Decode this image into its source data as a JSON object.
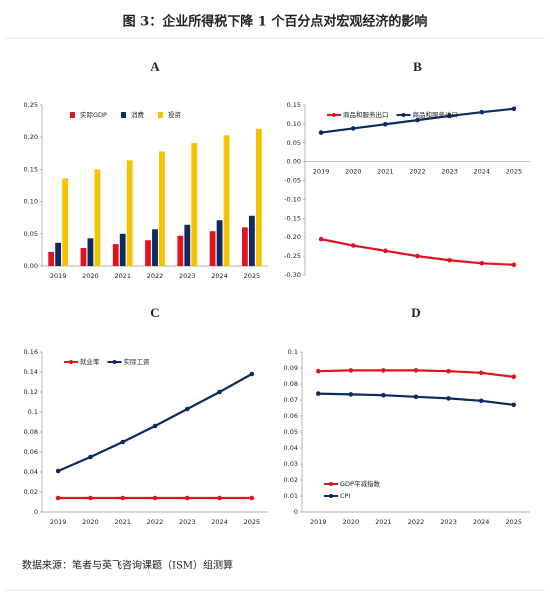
{
  "title": "图 3：企业所得税下降 1 个百分点对宏观经济的影响",
  "source": "数据来源：笔者与英飞咨询课题（ISM）组测算",
  "chart_data": [
    {
      "type": "bar",
      "title": "A",
      "categories": [
        "2019",
        "2020",
        "2021",
        "2022",
        "2023",
        "2024",
        "2025"
      ],
      "series": [
        {
          "name": "实际GDP",
          "color": "#e0141e",
          "values": [
            0.022,
            0.028,
            0.034,
            0.04,
            0.047,
            0.054,
            0.06
          ]
        },
        {
          "name": "消费",
          "color": "#0d2b5e",
          "values": [
            0.036,
            0.043,
            0.05,
            0.057,
            0.064,
            0.071,
            0.078
          ]
        },
        {
          "name": "投资",
          "color": "#f4c400",
          "values": [
            0.136,
            0.15,
            0.164,
            0.178,
            0.191,
            0.203,
            0.213
          ]
        }
      ],
      "ylim": [
        0,
        0.25
      ],
      "yticks": [
        {
          "value": 0,
          "label": "0.00"
        },
        0.05,
        {
          "value": 0.1,
          "label": "0.10"
        },
        0.15,
        {
          "value": 0.2,
          "label": "0.20"
        },
        0.25
      ],
      "legend": "upper left"
    },
    {
      "type": "line",
      "title": "B",
      "categories": [
        "2019",
        "2020",
        "2021",
        "2022",
        "2023",
        "2024",
        "2025"
      ],
      "series": [
        {
          "name": "商品和服务出口",
          "color": "#e0141e",
          "values": [
            -0.205,
            -0.222,
            -0.236,
            -0.25,
            -0.261,
            -0.269,
            -0.273
          ]
        },
        {
          "name": "商品和服务进口",
          "color": "#0d2b5e",
          "values": [
            0.077,
            0.088,
            0.099,
            0.11,
            0.121,
            0.131,
            0.14
          ]
        }
      ],
      "ylim": [
        -0.3,
        0.15
      ],
      "yticks": [
        {
          "value": -0.3,
          "label": "-0.30"
        },
        -0.25,
        {
          "value": -0.2,
          "label": "-0.20"
        },
        -0.15,
        {
          "value": -0.1,
          "label": "-0.10"
        },
        -0.05,
        {
          "value": 0,
          "label": "0.00"
        },
        0.05,
        {
          "value": 0.1,
          "label": "0.10"
        },
        0.15
      ],
      "legend": "upper left"
    },
    {
      "type": "line",
      "title": "C",
      "categories": [
        "2019",
        "2020",
        "2021",
        "2022",
        "2023",
        "2024",
        "2025"
      ],
      "series": [
        {
          "name": "就业率",
          "color": "#e0141e",
          "values": [
            0.014,
            0.014,
            0.014,
            0.014,
            0.014,
            0.014,
            0.014
          ]
        },
        {
          "name": "实际工资",
          "color": "#0d2b5e",
          "values": [
            0.041,
            0.055,
            0.07,
            0.086,
            0.103,
            0.12,
            0.138
          ]
        }
      ],
      "ylim": [
        0,
        0.16
      ],
      "yticks": [
        0,
        0.02,
        0.04,
        0.06,
        0.08,
        0.1,
        0.12,
        0.14,
        0.16
      ],
      "legend": "upper left"
    },
    {
      "type": "line",
      "title": "D",
      "categories": [
        "2019",
        "2020",
        "2021",
        "2022",
        "2023",
        "2024",
        "2025"
      ],
      "series": [
        {
          "name": "GDP平减指数",
          "color": "#e0141e",
          "values": [
            0.088,
            0.0885,
            0.0885,
            0.0885,
            0.088,
            0.087,
            0.0845
          ]
        },
        {
          "name": "CPI",
          "color": "#0d2b5e",
          "values": [
            0.074,
            0.0735,
            0.073,
            0.072,
            0.071,
            0.0695,
            0.067
          ]
        }
      ],
      "ylim": [
        0,
        0.1
      ],
      "yticks": [
        0,
        0.01,
        0.02,
        0.03,
        0.04,
        0.05,
        0.06,
        0.07,
        0.08,
        0.09,
        0.1
      ],
      "legend": "lower left"
    }
  ]
}
